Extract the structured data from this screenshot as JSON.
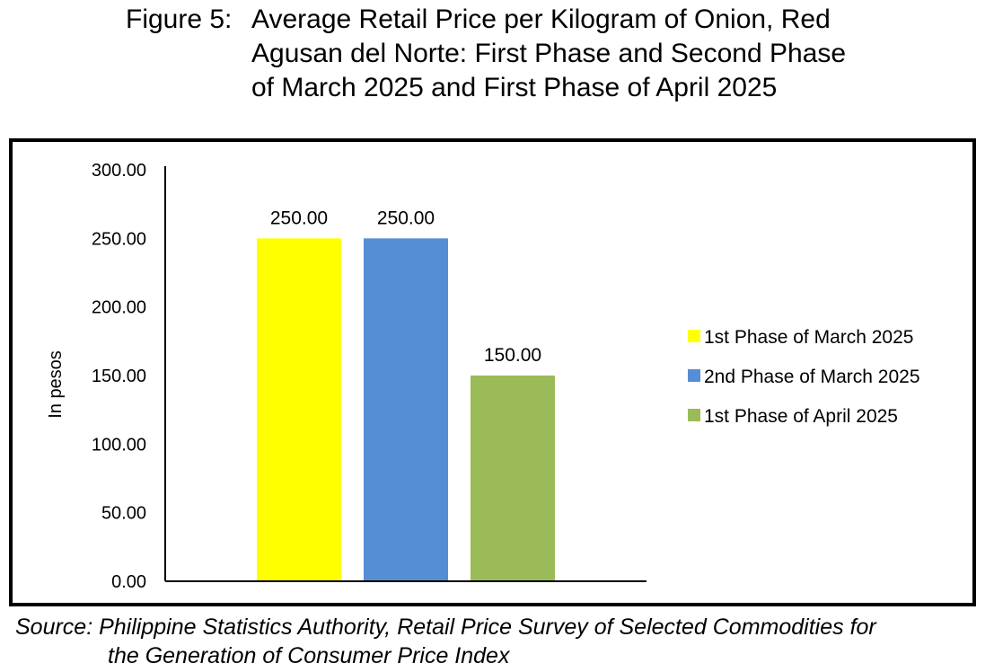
{
  "title": {
    "prefix": "Figure 5:",
    "line1": "Average Retail Price per Kilogram of Onion, Red",
    "line2": "Agusan del Norte: First Phase and Second Phase",
    "line3": "of March 2025 and First Phase of April 2025"
  },
  "source": {
    "line1": "Source: Philippine Statistics Authority, Retail Price Survey of Selected Commodities for",
    "line2": "the Generation of Consumer Price Index"
  },
  "chart_data": {
    "type": "bar",
    "ylabel": "In pesos",
    "xlabel": "",
    "ylim": [
      0,
      300
    ],
    "yticks": [
      "0.00",
      "50.00",
      "100.00",
      "150.00",
      "200.00",
      "250.00",
      "300.00"
    ],
    "grid": false,
    "legend_position": "right",
    "series": [
      {
        "name": "1st Phase of March 2025",
        "value": 250,
        "label": "250.00",
        "color": "#FFFF00"
      },
      {
        "name": "2nd Phase of March 2025",
        "value": 250,
        "label": "250.00",
        "color": "#558ED5"
      },
      {
        "name": "1st Phase of April 2025",
        "value": 150,
        "label": "150.00",
        "color": "#9BBB59"
      }
    ]
  }
}
